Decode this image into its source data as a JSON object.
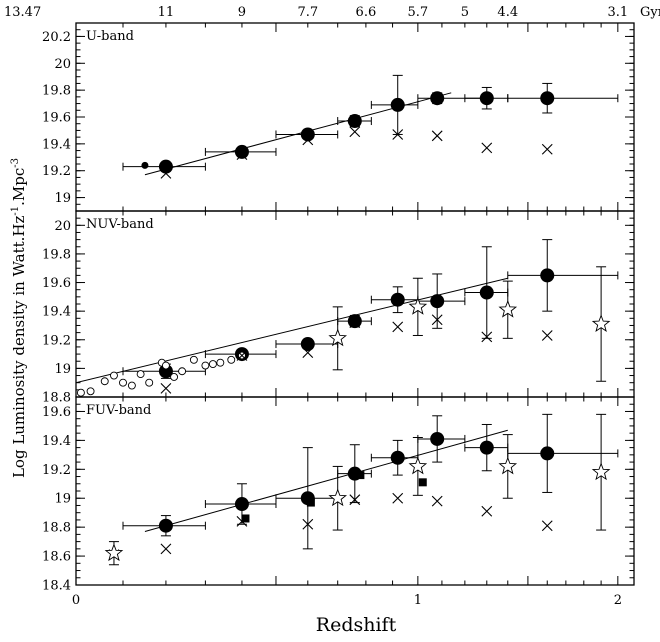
{
  "figure": {
    "ylabel_main": "Log Luminosity density in Watt.Hz",
    "ylabel_sup1": "-1",
    "ylabel_mid": ".Mpc",
    "ylabel_sup2": "-3",
    "xlabel": "Redshift",
    "age_unit": "Gyr",
    "age_ticks": [
      {
        "label": "13.47",
        "z": 0.0
      },
      {
        "label": "11",
        "z": 0.2
      },
      {
        "label": "9",
        "z": 0.4
      },
      {
        "label": "7.7",
        "z": 0.6
      },
      {
        "label": "6.6",
        "z": 0.8
      },
      {
        "label": "5.7",
        "z": 1.0
      },
      {
        "label": "5",
        "z": 1.2
      },
      {
        "label": "4.4",
        "z": 1.4
      },
      {
        "label": "3.1",
        "z": 2.0
      }
    ],
    "x_ticks": [
      {
        "label": "0",
        "z": 0
      },
      {
        "label": "1",
        "z": 1
      },
      {
        "label": "2",
        "z": 2
      }
    ]
  },
  "chart_data": [
    {
      "type": "scatter",
      "title": "U-band",
      "x_scale": "log(1+z)",
      "xlim": [
        0,
        2.1
      ],
      "ylim": [
        18.9,
        20.3
      ],
      "y_ticks": [
        "19",
        "19.2",
        "19.4",
        "19.6",
        "19.8",
        "20",
        "20.2"
      ],
      "series": [
        {
          "marker": "big-filled-circle",
          "points": [
            {
              "x": 0.2,
              "y": 19.23,
              "xerr": [
                0.1,
                0.3
              ],
              "yerr": 0.03
            },
            {
              "x": 0.4,
              "y": 19.34,
              "xerr": [
                0.3,
                0.5
              ],
              "yerr": 0.02
            },
            {
              "x": 0.6,
              "y": 19.47,
              "xerr": [
                0.5,
                0.7
              ],
              "yerr": 0.03
            },
            {
              "x": 0.76,
              "y": 19.57,
              "xerr": [
                0.7,
                0.82
              ],
              "yerr": 0.04
            },
            {
              "x": 0.92,
              "y": 19.69,
              "xerr": [
                0.82,
                1.0
              ],
              "yerr": 0.22
            },
            {
              "x": 1.08,
              "y": 19.74,
              "xerr": [
                1.0,
                1.3
              ],
              "yerr": 0.04
            },
            {
              "x": 1.3,
              "y": 19.74,
              "xerr": [
                1.2,
                1.4
              ],
              "yerr": 0.08
            },
            {
              "x": 1.6,
              "y": 19.74,
              "xerr": [
                1.4,
                2.0
              ],
              "yerr": 0.11
            }
          ]
        },
        {
          "marker": "small-filled-circle",
          "points": [
            {
              "x": 0.15,
              "y": 19.24
            }
          ]
        },
        {
          "marker": "cross",
          "points": [
            {
              "x": 0.2,
              "y": 19.18
            },
            {
              "x": 0.4,
              "y": 19.32
            },
            {
              "x": 0.6,
              "y": 19.43
            },
            {
              "x": 0.76,
              "y": 19.49
            },
            {
              "x": 0.92,
              "y": 19.47
            },
            {
              "x": 1.08,
              "y": 19.46
            },
            {
              "x": 1.3,
              "y": 19.37
            },
            {
              "x": 1.6,
              "y": 19.36
            }
          ]
        }
      ],
      "fit_line": [
        [
          0.15,
          19.17
        ],
        [
          1.14,
          19.78
        ]
      ]
    },
    {
      "type": "scatter",
      "title": "NUV-band",
      "x_scale": "log(1+z)",
      "xlim": [
        0,
        2.1
      ],
      "ylim": [
        18.8,
        20.1
      ],
      "y_ticks": [
        "18.8",
        "19",
        "19.2",
        "19.4",
        "19.6",
        "19.8",
        "20"
      ],
      "series": [
        {
          "marker": "big-filled-circle",
          "points": [
            {
              "x": 0.2,
              "y": 18.98,
              "xerr": [
                0.1,
                0.3
              ],
              "yerr": 0.05
            },
            {
              "x": 0.4,
              "y": 19.1,
              "xerr": [
                0.3,
                0.5
              ],
              "yerr": 0.02
            },
            {
              "x": 0.6,
              "y": 19.17,
              "xerr": [
                0.5,
                0.7
              ],
              "yerr": 0.03
            },
            {
              "x": 0.76,
              "y": 19.33,
              "xerr": [
                0.7,
                0.82
              ],
              "yerr": 0.04
            },
            {
              "x": 0.92,
              "y": 19.48,
              "xerr": [
                0.82,
                1.0
              ],
              "yerr": 0.09
            },
            {
              "x": 1.08,
              "y": 19.47,
              "xerr": [
                1.0,
                1.2
              ],
              "yerr": 0.19
            },
            {
              "x": 1.3,
              "y": 19.53,
              "xerr": [
                1.2,
                1.4
              ],
              "yerr": 0.32
            },
            {
              "x": 1.6,
              "y": 19.65,
              "xerr": [
                1.4,
                2.0
              ],
              "yerr": 0.25
            }
          ]
        },
        {
          "marker": "open-circle",
          "points": [
            {
              "x": 0.01,
              "y": 18.83
            },
            {
              "x": 0.03,
              "y": 18.84
            },
            {
              "x": 0.06,
              "y": 18.91
            },
            {
              "x": 0.08,
              "y": 18.95
            },
            {
              "x": 0.1,
              "y": 18.9
            },
            {
              "x": 0.12,
              "y": 18.88
            },
            {
              "x": 0.14,
              "y": 18.96
            },
            {
              "x": 0.16,
              "y": 18.9
            },
            {
              "x": 0.19,
              "y": 19.04
            },
            {
              "x": 0.2,
              "y": 19.02
            },
            {
              "x": 0.22,
              "y": 18.94
            },
            {
              "x": 0.24,
              "y": 18.98
            },
            {
              "x": 0.27,
              "y": 19.06
            },
            {
              "x": 0.3,
              "y": 19.02
            },
            {
              "x": 0.32,
              "y": 19.03
            },
            {
              "x": 0.34,
              "y": 19.04
            },
            {
              "x": 0.37,
              "y": 19.06
            },
            {
              "x": 0.4,
              "y": 19.09
            }
          ]
        },
        {
          "marker": "cross",
          "points": [
            {
              "x": 0.2,
              "y": 18.86
            },
            {
              "x": 0.4,
              "y": 19.09
            },
            {
              "x": 0.6,
              "y": 19.11
            },
            {
              "x": 0.76,
              "y": 19.32
            },
            {
              "x": 0.92,
              "y": 19.29
            },
            {
              "x": 1.08,
              "y": 19.34
            },
            {
              "x": 1.3,
              "y": 19.22
            },
            {
              "x": 1.6,
              "y": 19.23
            }
          ]
        },
        {
          "marker": "open-star",
          "points": [
            {
              "x": 0.7,
              "y": 19.21,
              "yerr": 0.22
            },
            {
              "x": 1.0,
              "y": 19.43,
              "yerr": 0.2
            },
            {
              "x": 1.4,
              "y": 19.41,
              "yerr": 0.2
            },
            {
              "x": 1.9,
              "y": 19.31,
              "yerr": 0.4
            }
          ]
        }
      ],
      "fit_line": [
        [
          0.0,
          18.9
        ],
        [
          1.4,
          19.63
        ]
      ]
    },
    {
      "type": "scatter",
      "title": "FUV-band",
      "x_scale": "log(1+z)",
      "xlim": [
        0,
        2.1
      ],
      "ylim": [
        18.4,
        19.7
      ],
      "y_ticks": [
        "18.4",
        "18.6",
        "18.8",
        "19",
        "19.2",
        "19.4",
        "19.6"
      ],
      "series": [
        {
          "marker": "big-filled-circle",
          "points": [
            {
              "x": 0.2,
              "y": 18.81,
              "xerr": [
                0.1,
                0.3
              ],
              "yerr": 0.07
            },
            {
              "x": 0.4,
              "y": 18.96,
              "xerr": [
                0.3,
                0.5
              ],
              "yerr": 0.14
            },
            {
              "x": 0.6,
              "y": 19.0,
              "xerr": [
                0.5,
                0.7
              ],
              "yerr": 0.35
            },
            {
              "x": 0.76,
              "y": 19.17,
              "xerr": [
                0.7,
                0.82
              ],
              "yerr": 0.2
            },
            {
              "x": 0.92,
              "y": 19.28,
              "xerr": [
                0.82,
                1.0
              ],
              "yerr": 0.12
            },
            {
              "x": 1.08,
              "y": 19.41,
              "xerr": [
                1.0,
                1.2
              ],
              "yerr": 0.16
            },
            {
              "x": 1.3,
              "y": 19.35,
              "xerr": [
                1.2,
                1.4
              ],
              "yerr": 0.16
            },
            {
              "x": 1.6,
              "y": 19.31,
              "xerr": [
                1.4,
                2.0
              ],
              "yerr": 0.27
            }
          ]
        },
        {
          "marker": "filled-square",
          "points": [
            {
              "x": 0.41,
              "y": 18.86
            },
            {
              "x": 0.61,
              "y": 18.97
            },
            {
              "x": 0.78,
              "y": 19.16
            },
            {
              "x": 1.02,
              "y": 19.11
            }
          ]
        },
        {
          "marker": "cross",
          "points": [
            {
              "x": 0.08,
              "y": 18.61
            },
            {
              "x": 0.2,
              "y": 18.65
            },
            {
              "x": 0.4,
              "y": 18.84
            },
            {
              "x": 0.6,
              "y": 18.82
            },
            {
              "x": 0.76,
              "y": 18.99
            },
            {
              "x": 0.92,
              "y": 19.0
            },
            {
              "x": 1.08,
              "y": 18.98
            },
            {
              "x": 1.3,
              "y": 18.91
            },
            {
              "x": 1.6,
              "y": 18.81
            }
          ]
        },
        {
          "marker": "open-star",
          "points": [
            {
              "x": 0.08,
              "y": 18.62,
              "yerr": 0.08
            },
            {
              "x": 0.7,
              "y": 19.0,
              "yerr": 0.22
            },
            {
              "x": 1.0,
              "y": 19.22,
              "yerr": 0.2
            },
            {
              "x": 1.4,
              "y": 19.22,
              "yerr": 0.22
            },
            {
              "x": 1.9,
              "y": 19.18,
              "yerr": 0.4
            }
          ]
        }
      ],
      "fit_line": [
        [
          0.15,
          18.77
        ],
        [
          1.4,
          19.47
        ]
      ]
    }
  ]
}
